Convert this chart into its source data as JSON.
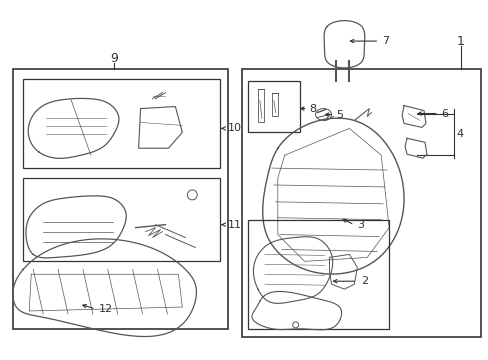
{
  "bg_color": "#ffffff",
  "line_color": "#333333",
  "gray_color": "#555555",
  "fig_width": 4.89,
  "fig_height": 3.6,
  "dpi": 100
}
